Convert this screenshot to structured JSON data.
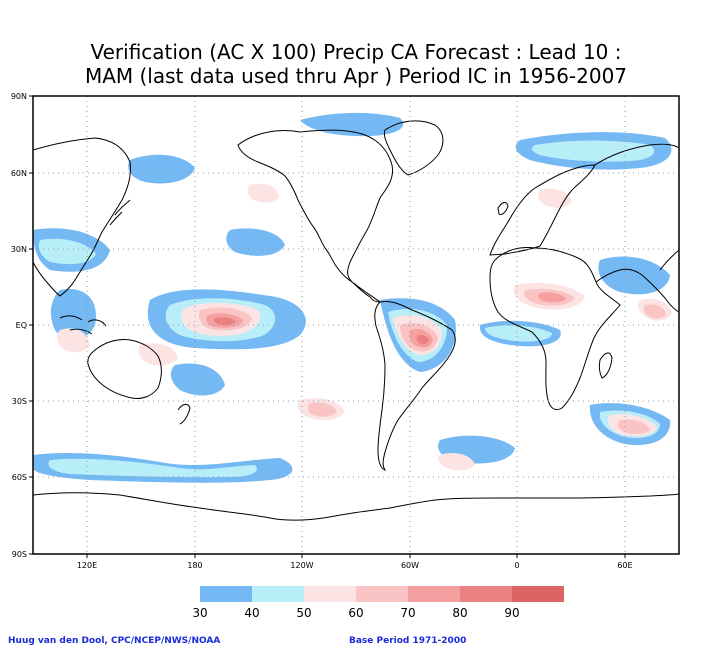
{
  "title": {
    "line1": "Verification (AC X 100) Precip CA Forecast : Lead 10 :",
    "line2": "MAM (last data used thru Apr ) Period IC in 1956-2007"
  },
  "lat_labels": [
    "90N",
    "60N",
    "30N",
    "EQ",
    "30S",
    "60S",
    "90S"
  ],
  "lon_labels": [
    "120E",
    "180",
    "120W",
    "60W",
    "0",
    "60E"
  ],
  "legend": {
    "colors": [
      "#74b8f4",
      "#b8eef8",
      "#fde4e4",
      "#fbc4c4",
      "#f4a0a0",
      "#ea8080",
      "#de6464"
    ],
    "labels": [
      "30",
      "40",
      "50",
      "60",
      "70",
      "80",
      "90"
    ]
  },
  "footer": {
    "left": "Huug van den Dool, CPC/NCEP/NWS/NOAA",
    "right": "Base Period 1971-2000"
  }
}
